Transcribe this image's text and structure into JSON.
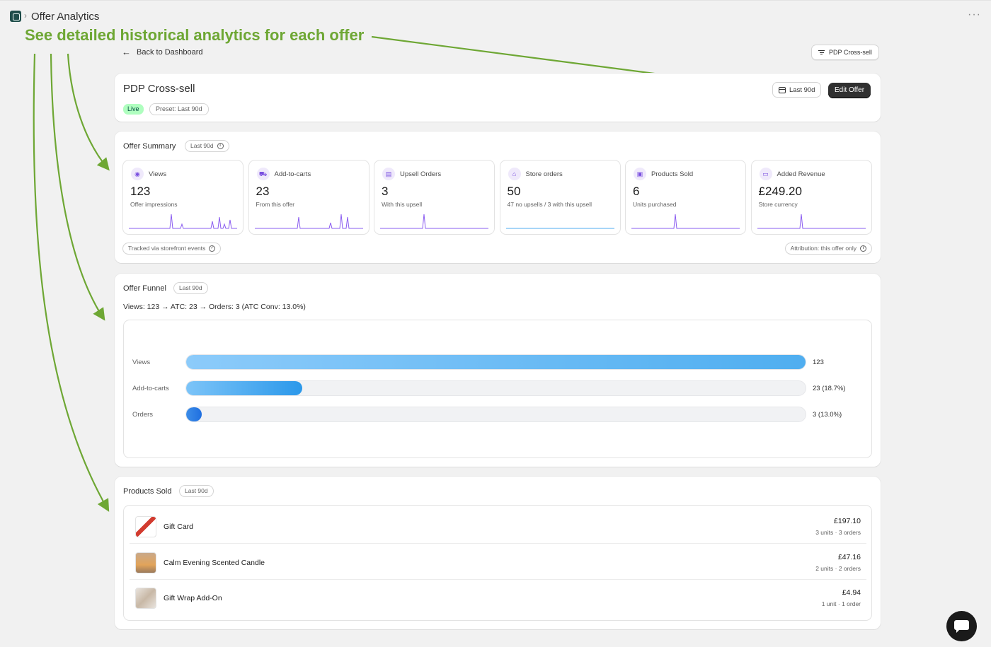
{
  "topbar": {
    "app_title": "Offer Analytics",
    "separator": "›",
    "more": "···"
  },
  "annotation": {
    "text": "See detailed historical analytics for each offer",
    "color": "#6ea734"
  },
  "nav": {
    "back_label": "Back to Dashboard",
    "offer_selector": "PDP Cross-sell"
  },
  "offer": {
    "name": "PDP Cross-sell",
    "status": "Live",
    "preset": "Preset: Last 90d",
    "period_button": "Last 90d",
    "edit_button": "Edit Offer"
  },
  "summary": {
    "title": "Offer Summary",
    "period": "Last 90d",
    "tracked_note": "Tracked via storefront events",
    "attribution_note": "Attribution: this offer only",
    "metrics": [
      {
        "label": "Views",
        "value": "123",
        "sub": "Offer impressions",
        "icon": "eye-icon",
        "glyph": "◉"
      },
      {
        "label": "Add-to-carts",
        "value": "23",
        "sub": "From this offer",
        "icon": "cart-icon",
        "glyph": "⛟"
      },
      {
        "label": "Upsell Orders",
        "value": "3",
        "sub": "With this upsell",
        "icon": "receipt-icon",
        "glyph": "▤"
      },
      {
        "label": "Store orders",
        "value": "50",
        "sub": "47 no upsells / 3 with this upsell",
        "icon": "store-icon",
        "glyph": "⌂"
      },
      {
        "label": "Products Sold",
        "value": "6",
        "sub": "Units purchased",
        "icon": "box-icon",
        "glyph": "▣"
      },
      {
        "label": "Added Revenue",
        "value": "£249.20",
        "sub": "Store currency",
        "icon": "cash-icon",
        "glyph": "▭"
      }
    ]
  },
  "funnel": {
    "title": "Offer Funnel",
    "period": "Last 90d",
    "summary_text": "Views: 123 → ATC: 23 → Orders: 3 (ATC Conv: 13.0%)",
    "stages": [
      {
        "label": "Views",
        "value_text": "123",
        "fraction": 1.0
      },
      {
        "label": "Add-to-carts",
        "value_text": "23 (18.7%)",
        "fraction": 0.187
      },
      {
        "label": "Orders",
        "value_text": "3 (13.0%)",
        "fraction": 0.024
      }
    ]
  },
  "products": {
    "title": "Products Sold",
    "period": "Last 90d",
    "items": [
      {
        "name": "Gift Card",
        "price": "£197.10",
        "meta": "3 units · 3 orders"
      },
      {
        "name": "Calm Evening Scented Candle",
        "price": "£47.16",
        "meta": "2 units · 2 orders"
      },
      {
        "name": "Gift Wrap Add-On",
        "price": "£4.94",
        "meta": "1 unit · 1 order"
      }
    ]
  },
  "colors": {
    "accent": "#303030",
    "live_badge": "#affebf",
    "spark_line": "#8a5cf0",
    "funnel_fill": "#4faef0"
  }
}
